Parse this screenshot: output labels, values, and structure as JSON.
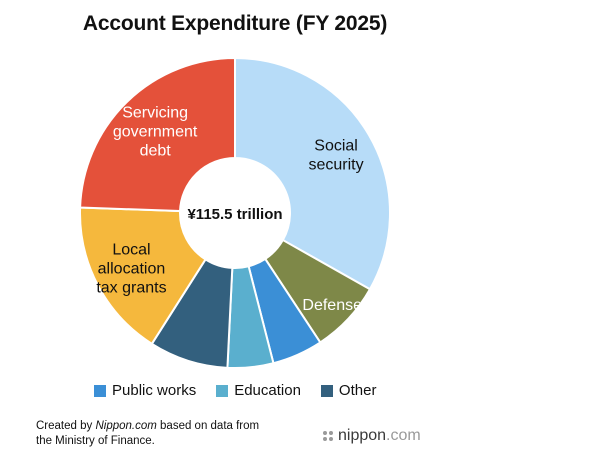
{
  "chart_data": {
    "type": "pie",
    "title": "Account Expenditure (FY 2025)",
    "center_label": "¥115.5 trillion",
    "slices": [
      {
        "label": "Social security",
        "value": 38.3,
        "color": "#b7dcf8",
        "label_color": "#111111",
        "shown_label": "Social\nsecurity"
      },
      {
        "label": "Defense",
        "value": 8.7,
        "color": "#7e8848",
        "label_color": "#ffffff",
        "shown_label": "Defense"
      },
      {
        "label": "Public works",
        "value": 6.1,
        "color": "#3b8fd6",
        "label_color": "",
        "shown_label": ""
      },
      {
        "label": "Education",
        "value": 5.5,
        "color": "#5aafce",
        "label_color": "",
        "shown_label": ""
      },
      {
        "label": "Other",
        "value": 9.5,
        "color": "#33607e",
        "label_color": "",
        "shown_label": ""
      },
      {
        "label": "Local allocation tax grants",
        "value": 19.1,
        "color": "#f5b83d",
        "label_color": "#111111",
        "shown_label": "Local\nallocation\ntax grants"
      },
      {
        "label": "Servicing government debt",
        "value": 28.2,
        "color": "#e4513a",
        "label_color": "#ffffff",
        "shown_label": "Servicing\ngovernment\ndebt"
      }
    ],
    "legend": [
      "Public works",
      "Education",
      "Other"
    ],
    "legend_placement": "bottom"
  },
  "legend_items": [
    {
      "label": "Public works",
      "color": "#3b8fd6"
    },
    {
      "label": "Education",
      "color": "#5aafce"
    },
    {
      "label": "Other",
      "color": "#33607e"
    }
  ],
  "credit": {
    "prefix": "Created by ",
    "site": "Nippon.com",
    "suffix": " based on data from",
    "line2": "the Ministry of Finance."
  },
  "brand": {
    "text": "nippon",
    "suffix": ".com"
  }
}
